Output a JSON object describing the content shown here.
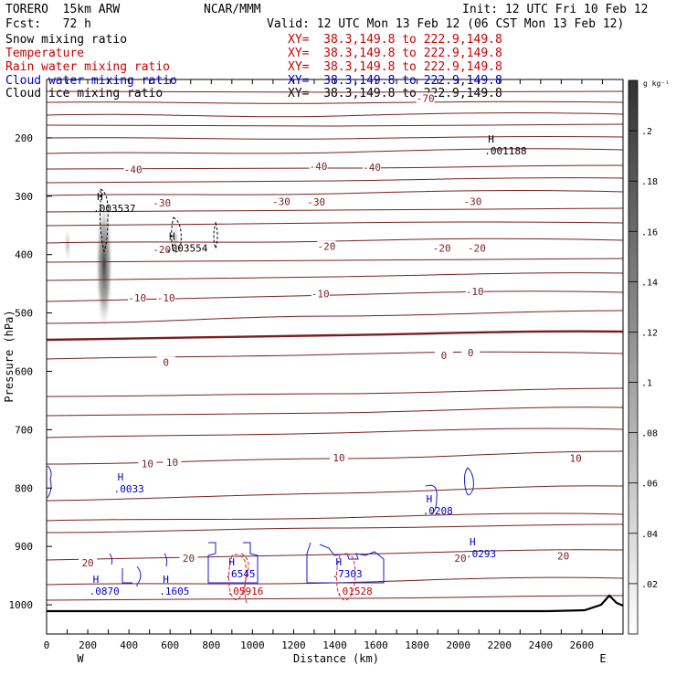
{
  "header": {
    "model": "TORERO  15km ARW",
    "org": "NCAR/MMM",
    "init": "Init: 12 UTC Fri 10 Feb 12",
    "fcst": "Fcst:   72 h",
    "valid": "Valid: 12 UTC Mon 13 Feb 12 (06 CST Mon 13 Feb 12)"
  },
  "fields": [
    {
      "name": "Snow mixing ratio",
      "xy": "XY=  38.3,149.8 to 222.9,149.8",
      "color": "#000000"
    },
    {
      "name": "Temperature",
      "xy": "XY=  38.3,149.8 to 222.9,149.8",
      "color": "#cc0000"
    },
    {
      "name": "Rain water mixing ratio",
      "xy": "XY=  38.3,149.8 to 222.9,149.8",
      "color": "#cc0000"
    },
    {
      "name": "Cloud water mixing ratio",
      "xy": "XY=  38.3,149.8 to 222.9,149.8",
      "color": "#0000cc"
    },
    {
      "name": "Cloud ice mixing ratio",
      "xy": "XY=  38.3,149.8 to 222.9,149.8",
      "color": "#000000"
    }
  ],
  "chart_data": {
    "type": "cross-section",
    "xlabel": "Distance (km)",
    "ylabel": "Pressure (hPa)",
    "xlim": [
      0,
      2800
    ],
    "ylim": [
      1050,
      100
    ],
    "x_ticks": [
      0,
      100,
      200,
      300,
      400,
      500,
      600,
      700,
      800,
      900,
      1000,
      1100,
      1200,
      1300,
      1400,
      1500,
      1600,
      1700,
      1800,
      1900,
      2000,
      2100,
      2200,
      2300,
      2400,
      2500,
      2600,
      2700
    ],
    "x_tick_labels": [
      "0",
      "200",
      "400",
      "600",
      "800",
      "1000",
      "1200",
      "1400",
      "1600",
      "1800",
      "2000",
      "2200",
      "2400",
      "2600"
    ],
    "y_tick_labels": [
      "200",
      "300",
      "400",
      "500",
      "600",
      "700",
      "800",
      "900",
      "1000"
    ],
    "y_ticks": [
      200,
      300,
      400,
      500,
      600,
      700,
      800,
      900,
      1000
    ],
    "end_left": "W",
    "end_right": "E",
    "colorbar": {
      "unit": "g kg⁻¹",
      "ticks": [
        ".2",
        ".18",
        ".16",
        ".14",
        ".12",
        ".1",
        ".08",
        ".06",
        ".04",
        ".02"
      ],
      "tick_values": [
        0.2,
        0.18,
        0.16,
        0.14,
        0.12,
        0.1,
        0.08,
        0.06,
        0.04,
        0.02
      ],
      "max": 0.22
    },
    "temperature_labels": [
      {
        "text": "-70",
        "x": 1840,
        "p": 132
      },
      {
        "text": "-40",
        "x": 420,
        "p": 254
      },
      {
        "text": "-40",
        "x": 1320,
        "p": 249
      },
      {
        "text": "-40",
        "x": 1580,
        "p": 250
      },
      {
        "text": "-30",
        "x": 560,
        "p": 311
      },
      {
        "text": "-30",
        "x": 1140,
        "p": 309
      },
      {
        "text": "-30",
        "x": 1310,
        "p": 310
      },
      {
        "text": "-30",
        "x": 2070,
        "p": 309
      },
      {
        "text": "-20",
        "x": 560,
        "p": 391
      },
      {
        "text": "-20",
        "x": 1360,
        "p": 386
      },
      {
        "text": "-20",
        "x": 1920,
        "p": 389
      },
      {
        "text": "-20",
        "x": 2090,
        "p": 389
      },
      {
        "text": "-10",
        "x": 440,
        "p": 474
      },
      {
        "text": "-10",
        "x": 580,
        "p": 474
      },
      {
        "text": "-10",
        "x": 1330,
        "p": 467
      },
      {
        "text": "-10",
        "x": 2080,
        "p": 463
      },
      {
        "text": "0",
        "x": 580,
        "p": 584
      },
      {
        "text": "0",
        "x": 1930,
        "p": 573
      },
      {
        "text": "0",
        "x": 2060,
        "p": 568
      },
      {
        "text": "10",
        "x": 490,
        "p": 758
      },
      {
        "text": "10",
        "x": 610,
        "p": 756
      },
      {
        "text": "10",
        "x": 1420,
        "p": 748
      },
      {
        "text": "10",
        "x": 2570,
        "p": 749
      },
      {
        "text": "20",
        "x": 200,
        "p": 928
      },
      {
        "text": "20",
        "x": 690,
        "p": 920
      },
      {
        "text": "20",
        "x": 2010,
        "p": 920
      },
      {
        "text": "20",
        "x": 2510,
        "p": 916
      }
    ],
    "maxima": [
      {
        "marker": "H",
        "value": ".003537",
        "x": 280,
        "p": 322,
        "color": "#000000"
      },
      {
        "marker": "H",
        "value": ".003554",
        "x": 630,
        "p": 390,
        "color": "#000000"
      },
      {
        "marker": "H",
        "value": ".001188",
        "x": 2180,
        "p": 224,
        "color": "#000000"
      },
      {
        "marker": "H",
        "value": ".0033",
        "x": 380,
        "p": 803,
        "color": "#0000cc"
      },
      {
        "marker": "H",
        "value": ".0208",
        "x": 1880,
        "p": 840,
        "color": "#0000cc"
      },
      {
        "marker": "H",
        "value": ".0870",
        "x": 260,
        "p": 978,
        "color": "#0000cc"
      },
      {
        "marker": "H",
        "value": ".1605",
        "x": 600,
        "p": 978,
        "color": "#0000cc"
      },
      {
        "marker": "H",
        "value": ".6545",
        "x": 920,
        "p": 948,
        "color": "#0000cc"
      },
      {
        "marker": "H",
        "value": ".7303",
        "x": 1440,
        "p": 948,
        "color": "#0000cc"
      },
      {
        "marker": "H",
        "value": ".0293",
        "x": 2090,
        "p": 914,
        "color": "#0000cc"
      },
      {
        "marker": "",
        "value": ".05916",
        "x": 930,
        "p": 978,
        "color": "#cc0000"
      },
      {
        "marker": "",
        "value": ".01528",
        "x": 1460,
        "p": 978,
        "color": "#cc0000"
      }
    ],
    "temperature_levels": [
      -70,
      -60,
      -50,
      -40,
      -30,
      -20,
      -10,
      0,
      10,
      20,
      30
    ],
    "grid": false
  }
}
